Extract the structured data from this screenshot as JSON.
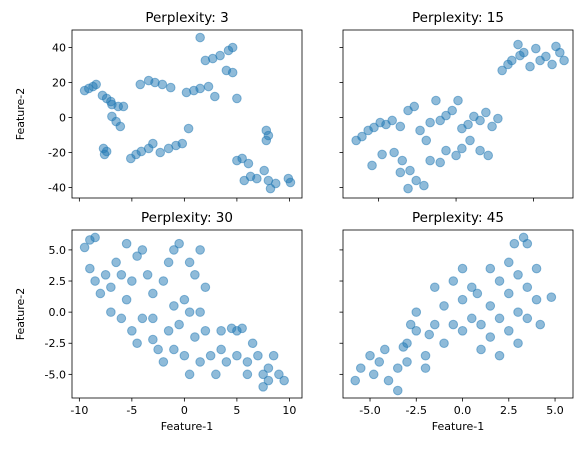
{
  "chart_data": [
    {
      "type": "scatter",
      "title": "Perplexity: 3",
      "ylabel": "Feature-2",
      "color": "#1f77b4",
      "alpha": 0.5,
      "xlim": [
        -10.7,
        11.2
      ],
      "xticks": [
        -10,
        -5,
        0,
        5,
        10
      ],
      "xticklabels": false,
      "ylim": [
        -46,
        50
      ],
      "yticks": [
        -40,
        -20,
        0,
        20,
        40
      ],
      "yticklabels": true,
      "x": [
        -9.5,
        -9.1,
        -8.7,
        -8.4,
        -7.8,
        -7.4,
        -7.0,
        -6.9,
        -6.3,
        -5.8,
        -6.9,
        -6.5,
        -6.1,
        -7.7,
        -7.4,
        -7.6,
        -5.1,
        -4.6,
        -4.1,
        -3.4,
        -3.0,
        -2.3,
        -1.5,
        -0.8,
        -0.2,
        0.4,
        -4.2,
        -3.4,
        -2.8,
        -2.1,
        -1.3,
        0.2,
        0.9,
        1.5,
        2.3,
        2.9,
        1.5,
        2.0,
        2.7,
        3.4,
        4.2,
        4.6,
        4.0,
        4.6,
        5.0,
        5.0,
        5.5,
        6.1,
        5.7,
        6.3,
        6.9,
        7.8,
        8.0,
        7.8,
        7.6,
        8.0,
        8.2,
        8.7,
        9.9,
        10.1
      ],
      "y": [
        15.4,
        16.6,
        17.7,
        18.9,
        12.6,
        10.9,
        9.1,
        7.4,
        6.3,
        6.3,
        0.6,
        -2.3,
        -5.1,
        -17.7,
        -19.4,
        -21.1,
        -23.4,
        -21.1,
        -19.4,
        -17.7,
        -14.9,
        -20,
        -17.7,
        -16,
        -14.9,
        -6.3,
        18.9,
        21.1,
        20,
        18.9,
        17.1,
        14.3,
        15.4,
        16.6,
        17.7,
        12,
        45.7,
        32.6,
        33.7,
        35.4,
        38.3,
        40,
        26.9,
        25.7,
        10.9,
        -24.6,
        -23.4,
        -26.3,
        -36,
        -33.7,
        -34.9,
        -7.4,
        -10.3,
        -13.1,
        -30.3,
        -36,
        -40.6,
        -37.7,
        -34.9,
        -37.1
      ]
    },
    {
      "type": "scatter",
      "title": "Perplexity: 15",
      "color": "#1f77b4",
      "alpha": 0.5,
      "xlim": [
        -29.2,
        30.2
      ],
      "xticks": [
        -20,
        0,
        20
      ],
      "xticklabels": false,
      "ylim": [
        -46,
        50
      ],
      "yticks": [
        -40,
        -20,
        0,
        20,
        40
      ],
      "yticklabels": false,
      "x": [
        -25.8,
        -24.3,
        -22.7,
        -21.2,
        -19.6,
        -18.1,
        -16.5,
        -14.4,
        -12.4,
        -10.8,
        -9.3,
        -7.7,
        -6.7,
        -5.2,
        -4.1,
        -2.6,
        -1.0,
        0.5,
        1.5,
        3.1,
        4.6,
        6.2,
        7.7,
        9.3,
        10.8,
        11.9,
        13.4,
        14.4,
        16.0,
        16.5,
        17.5,
        19.1,
        20.6,
        21.7,
        23.2,
        24.8,
        25.8,
        26.8,
        27.9,
        -21.7,
        -19.1,
        -16.0,
        -13.9,
        -12.4,
        -10.3,
        -8.3,
        -6.7,
        -4.1,
        -2.6,
        0,
        1.5,
        3.6,
        6.2,
        8.3,
        -14.4,
        -11.9
      ],
      "y": [
        -13.1,
        -10.9,
        -7.4,
        -5.7,
        -2.9,
        -4.0,
        -1.7,
        -5.1,
        4.0,
        6.3,
        -7.4,
        -13.1,
        -2.9,
        9.7,
        -1.7,
        1.1,
        4.0,
        9.7,
        -6.3,
        -4.0,
        0.6,
        -1.7,
        2.9,
        -5.1,
        -0.6,
        26.9,
        30.3,
        32.6,
        41.7,
        35.4,
        37.1,
        29.1,
        39.4,
        32.6,
        34.9,
        30.3,
        40.6,
        37.1,
        32.6,
        -27.4,
        -21.1,
        -20.0,
        -24.6,
        -40.6,
        -36.0,
        -38.9,
        -24.6,
        -25.7,
        -18.9,
        -21.7,
        -17.7,
        -13.1,
        -18.9,
        -21.7,
        -31.4,
        -30.3
      ]
    },
    {
      "type": "scatter",
      "title": "Perplexity: 30",
      "xlabel": "Feature-1",
      "ylabel": "Feature-2",
      "color": "#1f77b4",
      "alpha": 0.5,
      "xlim": [
        -10.7,
        11.2
      ],
      "xticks": [
        -10,
        -5,
        0,
        5,
        10
      ],
      "xticklabels": true,
      "ylim": [
        -6.9,
        6.6
      ],
      "yticks": [
        {
          "value": -5,
          "label": "-5.0"
        },
        {
          "value": -2.5,
          "label": "-2.5"
        },
        {
          "value": 0,
          "label": "0.0"
        },
        {
          "value": 2.5,
          "label": "2.5"
        },
        {
          "value": 5,
          "label": "5.0"
        }
      ],
      "yticklabels": true,
      "x": [
        -9.5,
        -9,
        -8.5,
        -9,
        -8.5,
        -8,
        -7.5,
        -7,
        -6.5,
        -6,
        -5.5,
        -5,
        -5.5,
        -6,
        -5,
        -4.5,
        -4,
        -3.5,
        -3,
        -4,
        -4.5,
        -3,
        -2.5,
        -2,
        -1.5,
        -1,
        -0.5,
        -1,
        -0.5,
        0,
        0.5,
        -1.5,
        -2,
        -1,
        0,
        0.5,
        1,
        1.5,
        2,
        1.5,
        2,
        1,
        1.5,
        2.5,
        3,
        0.5,
        3.5,
        4,
        4.5,
        5,
        5.5,
        5,
        6,
        6.5,
        7,
        7.5,
        8,
        8.5,
        8,
        9,
        9.5,
        7.5,
        6,
        3.5,
        -7,
        -3
      ],
      "y": [
        5.2,
        5.8,
        6,
        3.5,
        2.5,
        1.5,
        3,
        2,
        4,
        3,
        5.5,
        2.5,
        1,
        -0.5,
        -1.5,
        4.5,
        5,
        3,
        1.5,
        -0.5,
        -2.5,
        -0.5,
        -3,
        2.5,
        4,
        5,
        5.5,
        0.5,
        -1,
        1,
        0,
        -1.5,
        -4,
        -3,
        -3.5,
        4,
        3,
        5,
        2,
        0,
        -1.5,
        -2,
        -4,
        -3.5,
        -5,
        -5,
        -3,
        -4,
        -1.3,
        -1.5,
        -1.3,
        -3.5,
        -4,
        -2.5,
        -3.5,
        -5,
        -4.5,
        -3.5,
        -5.5,
        -5,
        -5.5,
        -6,
        -5,
        -1.5,
        0,
        -2.2
      ]
    },
    {
      "type": "scatter",
      "title": "Perplexity: 45",
      "xlabel": "Feature-1",
      "color": "#1f77b4",
      "alpha": 0.5,
      "xlim": [
        -6.46,
        5.97
      ],
      "xticks": [
        {
          "value": -5,
          "label": "-5.0"
        },
        {
          "value": -2.5,
          "label": "-2.5"
        },
        {
          "value": 0,
          "label": "0.0"
        },
        {
          "value": 2.5,
          "label": "2.5"
        },
        {
          "value": 5,
          "label": "5.0"
        }
      ],
      "xticklabels": true,
      "ylim": [
        -6.9,
        6.6
      ],
      "yticks": [
        -5,
        -2.5,
        0,
        2.5,
        5
      ],
      "yticklabels": false,
      "x": [
        -5.8,
        -5.5,
        -5,
        -4.8,
        -4.5,
        -4,
        -3.5,
        -3.5,
        -3,
        -3,
        -2.8,
        -2.5,
        -2.5,
        -2,
        -2,
        -1.5,
        -1.5,
        -1,
        -1,
        -0.5,
        -0.5,
        0,
        0,
        0,
        0.5,
        0.5,
        0.8,
        1,
        1,
        1.5,
        1.5,
        1.5,
        2,
        2,
        2,
        2.5,
        2.5,
        2.5,
        2.8,
        3,
        3,
        3,
        3.3,
        3.5,
        3.5,
        3.5,
        4,
        4,
        4.2,
        4.8,
        -4.2,
        -3.2,
        -1.8
      ],
      "y": [
        -5.5,
        -4.5,
        -3.5,
        -5,
        -4,
        -5.5,
        -4.5,
        -6.3,
        -2.5,
        -4,
        -1,
        0,
        -1.5,
        -3.5,
        -4.5,
        2,
        -1,
        0.5,
        -2.5,
        2.5,
        -1,
        1,
        3.5,
        -1.5,
        2,
        -0.5,
        1.5,
        -1,
        -3,
        3.5,
        0.5,
        -2,
        2.5,
        -0.5,
        -3.5,
        4,
        1.5,
        -1.5,
        5.5,
        3,
        0,
        -2.5,
        6,
        5.5,
        2,
        -0.5,
        3.5,
        1,
        -1,
        1.2,
        -3,
        -2.8,
        -1.8
      ]
    }
  ]
}
